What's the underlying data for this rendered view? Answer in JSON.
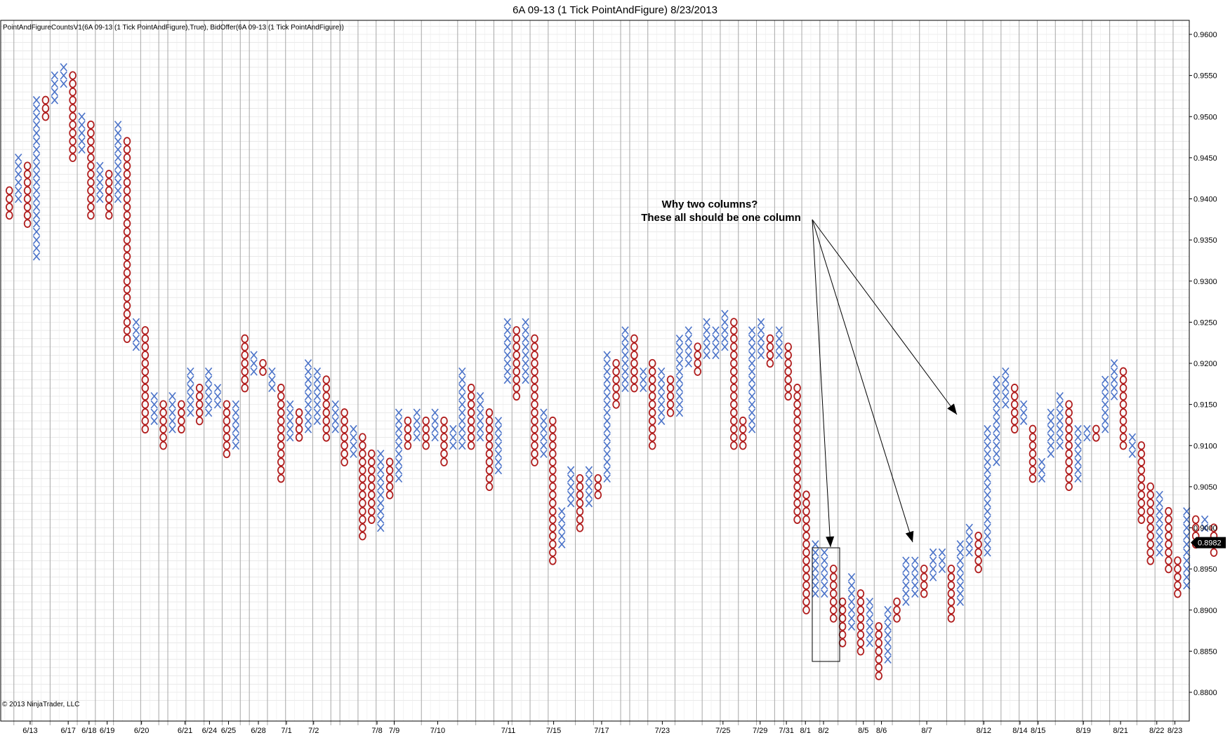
{
  "title": "6A 09-13 (1 Tick PointAndFigure)  8/23/2013",
  "indicator_label": "PointAndFigureCountsV1(6A 09-13 (1 Tick PointAndFigure),True), BidOffer(6A 09-13 (1 Tick PointAndFigure))",
  "copyright": "© 2013 NinjaTrader, LLC",
  "colors": {
    "x_color": "#4a72c8",
    "o_color": "#b01c1c",
    "grid": "#dcdcdc",
    "date_line": "#a8a8a8",
    "frame": "#000000"
  },
  "annotation": {
    "line1": "Why two columns?",
    "line2": "These all should be one column"
  },
  "last_price": {
    "label": "0.8982",
    "value": 0.8982
  },
  "chart_data": {
    "type": "point-and-figure",
    "box_size": 0.001,
    "ylim": [
      0.879,
      0.9615
    ],
    "y_ticks": [
      0.88,
      0.885,
      0.89,
      0.895,
      0.9,
      0.905,
      0.91,
      0.915,
      0.92,
      0.925,
      0.93,
      0.935,
      0.94,
      0.945,
      0.95,
      0.955,
      0.96
    ],
    "y_tick_labels": [
      "0.8800",
      "0.8850",
      "0.8900",
      "0.8950",
      "0.9000",
      "0.9050",
      "0.9100",
      "0.9150",
      "0.9200",
      "0.9250",
      "0.9300",
      "0.9350",
      "0.9400",
      "0.9450",
      "0.9500",
      "0.9550",
      "0.9600"
    ],
    "x_labels": [
      {
        "label": "6/13",
        "col": 2.3
      },
      {
        "label": "6/17",
        "col": 6.5
      },
      {
        "label": "6/18",
        "col": 8.8
      },
      {
        "label": "6/19",
        "col": 10.8
      },
      {
        "label": "6/20",
        "col": 14.6
      },
      {
        "label": "6/21",
        "col": 19.4
      },
      {
        "label": "6/24",
        "col": 22.1
      },
      {
        "label": "6/25",
        "col": 24.2
      },
      {
        "label": "6/28",
        "col": 27.5
      },
      {
        "label": "7/1",
        "col": 30.6
      },
      {
        "label": "7/2",
        "col": 33.6
      },
      {
        "label": "7/8",
        "col": 40.6
      },
      {
        "label": "7/9",
        "col": 42.5
      },
      {
        "label": "7/10",
        "col": 47.3
      },
      {
        "label": "7/11",
        "col": 55.1
      },
      {
        "label": "7/15",
        "col": 60.1
      },
      {
        "label": "7/17",
        "col": 65.4
      },
      {
        "label": "7/23",
        "col": 72.1
      },
      {
        "label": "7/25",
        "col": 78.8
      },
      {
        "label": "7/29",
        "col": 82.9
      },
      {
        "label": "7/31",
        "col": 85.8
      },
      {
        "label": "8/1",
        "col": 87.9
      },
      {
        "label": "8/2",
        "col": 89.9
      },
      {
        "label": "8/5",
        "col": 94.3
      },
      {
        "label": "8/6",
        "col": 96.3
      },
      {
        "label": "8/7",
        "col": 101.3
      },
      {
        "label": "8/12",
        "col": 107.6
      },
      {
        "label": "8/14",
        "col": 111.6
      },
      {
        "label": "8/15",
        "col": 113.6
      },
      {
        "label": "8/19",
        "col": 118.6
      },
      {
        "label": "8/21",
        "col": 122.7
      },
      {
        "label": "8/22",
        "col": 126.7
      },
      {
        "label": "8/23",
        "col": 128.7
      }
    ],
    "date_separators": [
      0.5,
      2.5,
      4.5,
      7.5,
      9.5,
      11.5,
      14.5,
      16.5,
      17.5,
      19.5,
      21.5,
      23.5,
      25.5,
      26.5,
      28.5,
      30.5,
      33.5,
      35.5,
      36.5,
      38.5,
      40.5,
      42.5,
      45.5,
      49.5,
      51.5,
      53.5,
      55.5,
      57.5,
      59.5,
      62.5,
      64.5,
      67.5,
      68.5,
      70.5,
      73.5,
      76.5,
      78.5,
      80.5,
      82.5,
      84.5,
      85.5,
      87.5,
      89.5,
      91.5,
      93.5,
      95.5,
      97.5,
      100.5,
      103.5,
      105.5,
      107.5,
      109.5,
      111.5,
      113.5,
      115.5,
      118.5,
      119.5,
      121.5,
      124.5,
      126.5,
      128.5
    ],
    "columns": [
      {
        "t": "O",
        "hi": 0.941,
        "lo": 0.938
      },
      {
        "t": "X",
        "hi": 0.945,
        "lo": 0.94
      },
      {
        "t": "O",
        "hi": 0.944,
        "lo": 0.937
      },
      {
        "t": "X",
        "hi": 0.952,
        "lo": 0.933
      },
      {
        "t": "O",
        "hi": 0.952,
        "lo": 0.95
      },
      {
        "t": "X",
        "hi": 0.955,
        "lo": 0.952
      },
      {
        "t": "X",
        "hi": 0.956,
        "lo": 0.954
      },
      {
        "t": "O",
        "hi": 0.955,
        "lo": 0.945
      },
      {
        "t": "X",
        "hi": 0.95,
        "lo": 0.946
      },
      {
        "t": "O",
        "hi": 0.949,
        "lo": 0.938
      },
      {
        "t": "X",
        "hi": 0.944,
        "lo": 0.94
      },
      {
        "t": "O",
        "hi": 0.943,
        "lo": 0.938
      },
      {
        "t": "X",
        "hi": 0.949,
        "lo": 0.94
      },
      {
        "t": "O",
        "hi": 0.947,
        "lo": 0.923
      },
      {
        "t": "X",
        "hi": 0.925,
        "lo": 0.922
      },
      {
        "t": "O",
        "hi": 0.924,
        "lo": 0.912
      },
      {
        "t": "X",
        "hi": 0.916,
        "lo": 0.913
      },
      {
        "t": "O",
        "hi": 0.915,
        "lo": 0.91
      },
      {
        "t": "X",
        "hi": 0.916,
        "lo": 0.912
      },
      {
        "t": "O",
        "hi": 0.915,
        "lo": 0.912
      },
      {
        "t": "X",
        "hi": 0.919,
        "lo": 0.914
      },
      {
        "t": "O",
        "hi": 0.917,
        "lo": 0.913
      },
      {
        "t": "X",
        "hi": 0.919,
        "lo": 0.914
      },
      {
        "t": "X",
        "hi": 0.917,
        "lo": 0.915
      },
      {
        "t": "O",
        "hi": 0.915,
        "lo": 0.909
      },
      {
        "t": "X",
        "hi": 0.915,
        "lo": 0.91
      },
      {
        "t": "O",
        "hi": 0.923,
        "lo": 0.917
      },
      {
        "t": "X",
        "hi": 0.921,
        "lo": 0.919
      },
      {
        "t": "O",
        "hi": 0.92,
        "lo": 0.919
      },
      {
        "t": "X",
        "hi": 0.919,
        "lo": 0.917
      },
      {
        "t": "O",
        "hi": 0.917,
        "lo": 0.906
      },
      {
        "t": "X",
        "hi": 0.915,
        "lo": 0.911
      },
      {
        "t": "O",
        "hi": 0.914,
        "lo": 0.911
      },
      {
        "t": "X",
        "hi": 0.92,
        "lo": 0.912
      },
      {
        "t": "X",
        "hi": 0.919,
        "lo": 0.913
      },
      {
        "t": "O",
        "hi": 0.918,
        "lo": 0.911
      },
      {
        "t": "X",
        "hi": 0.915,
        "lo": 0.912
      },
      {
        "t": "O",
        "hi": 0.914,
        "lo": 0.908
      },
      {
        "t": "X",
        "hi": 0.912,
        "lo": 0.909
      },
      {
        "t": "O",
        "hi": 0.911,
        "lo": 0.899
      },
      {
        "t": "O",
        "hi": 0.909,
        "lo": 0.901
      },
      {
        "t": "X",
        "hi": 0.909,
        "lo": 0.9
      },
      {
        "t": "O",
        "hi": 0.908,
        "lo": 0.904
      },
      {
        "t": "X",
        "hi": 0.914,
        "lo": 0.906
      },
      {
        "t": "O",
        "hi": 0.913,
        "lo": 0.91
      },
      {
        "t": "X",
        "hi": 0.914,
        "lo": 0.911
      },
      {
        "t": "O",
        "hi": 0.913,
        "lo": 0.91
      },
      {
        "t": "X",
        "hi": 0.914,
        "lo": 0.911
      },
      {
        "t": "O",
        "hi": 0.913,
        "lo": 0.908
      },
      {
        "t": "X",
        "hi": 0.912,
        "lo": 0.91
      },
      {
        "t": "X",
        "hi": 0.919,
        "lo": 0.91
      },
      {
        "t": "O",
        "hi": 0.917,
        "lo": 0.91
      },
      {
        "t": "X",
        "hi": 0.916,
        "lo": 0.911
      },
      {
        "t": "O",
        "hi": 0.914,
        "lo": 0.905
      },
      {
        "t": "X",
        "hi": 0.913,
        "lo": 0.907
      },
      {
        "t": "X",
        "hi": 0.925,
        "lo": 0.918
      },
      {
        "t": "O",
        "hi": 0.924,
        "lo": 0.916
      },
      {
        "t": "X",
        "hi": 0.925,
        "lo": 0.918
      },
      {
        "t": "O",
        "hi": 0.923,
        "lo": 0.908
      },
      {
        "t": "X",
        "hi": 0.914,
        "lo": 0.909
      },
      {
        "t": "O",
        "hi": 0.913,
        "lo": 0.896
      },
      {
        "t": "X",
        "hi": 0.902,
        "lo": 0.898
      },
      {
        "t": "X",
        "hi": 0.907,
        "lo": 0.903
      },
      {
        "t": "O",
        "hi": 0.906,
        "lo": 0.9
      },
      {
        "t": "X",
        "hi": 0.907,
        "lo": 0.903
      },
      {
        "t": "O",
        "hi": 0.906,
        "lo": 0.904
      },
      {
        "t": "X",
        "hi": 0.921,
        "lo": 0.906
      },
      {
        "t": "O",
        "hi": 0.92,
        "lo": 0.915
      },
      {
        "t": "X",
        "hi": 0.924,
        "lo": 0.917
      },
      {
        "t": "O",
        "hi": 0.923,
        "lo": 0.917
      },
      {
        "t": "X",
        "hi": 0.919,
        "lo": 0.917
      },
      {
        "t": "O",
        "hi": 0.92,
        "lo": 0.91
      },
      {
        "t": "X",
        "hi": 0.919,
        "lo": 0.913
      },
      {
        "t": "O",
        "hi": 0.918,
        "lo": 0.914
      },
      {
        "t": "X",
        "hi": 0.923,
        "lo": 0.914
      },
      {
        "t": "X",
        "hi": 0.924,
        "lo": 0.92
      },
      {
        "t": "O",
        "hi": 0.922,
        "lo": 0.919
      },
      {
        "t": "X",
        "hi": 0.925,
        "lo": 0.921
      },
      {
        "t": "X",
        "hi": 0.924,
        "lo": 0.921
      },
      {
        "t": "X",
        "hi": 0.926,
        "lo": 0.922
      },
      {
        "t": "O",
        "hi": 0.925,
        "lo": 0.91
      },
      {
        "t": "O",
        "hi": 0.913,
        "lo": 0.91
      },
      {
        "t": "X",
        "hi": 0.924,
        "lo": 0.912
      },
      {
        "t": "X",
        "hi": 0.925,
        "lo": 0.921
      },
      {
        "t": "O",
        "hi": 0.923,
        "lo": 0.92
      },
      {
        "t": "X",
        "hi": 0.924,
        "lo": 0.921
      },
      {
        "t": "O",
        "hi": 0.922,
        "lo": 0.916
      },
      {
        "t": "O",
        "hi": 0.917,
        "lo": 0.901
      },
      {
        "t": "O",
        "hi": 0.904,
        "lo": 0.89
      },
      {
        "t": "X",
        "hi": 0.898,
        "lo": 0.892
      },
      {
        "t": "X",
        "hi": 0.897,
        "lo": 0.892
      },
      {
        "t": "O",
        "hi": 0.895,
        "lo": 0.889
      },
      {
        "t": "O",
        "hi": 0.891,
        "lo": 0.886
      },
      {
        "t": "X",
        "hi": 0.894,
        "lo": 0.888
      },
      {
        "t": "O",
        "hi": 0.892,
        "lo": 0.885
      },
      {
        "t": "X",
        "hi": 0.891,
        "lo": 0.886
      },
      {
        "t": "O",
        "hi": 0.888,
        "lo": 0.882
      },
      {
        "t": "X",
        "hi": 0.89,
        "lo": 0.884
      },
      {
        "t": "O",
        "hi": 0.891,
        "lo": 0.889
      },
      {
        "t": "X",
        "hi": 0.896,
        "lo": 0.891
      },
      {
        "t": "X",
        "hi": 0.896,
        "lo": 0.892
      },
      {
        "t": "O",
        "hi": 0.895,
        "lo": 0.892
      },
      {
        "t": "X",
        "hi": 0.897,
        "lo": 0.894
      },
      {
        "t": "X",
        "hi": 0.897,
        "lo": 0.895
      },
      {
        "t": "O",
        "hi": 0.895,
        "lo": 0.889
      },
      {
        "t": "X",
        "hi": 0.898,
        "lo": 0.891
      },
      {
        "t": "X",
        "hi": 0.9,
        "lo": 0.897
      },
      {
        "t": "O",
        "hi": 0.899,
        "lo": 0.895
      },
      {
        "t": "X",
        "hi": 0.912,
        "lo": 0.897
      },
      {
        "t": "X",
        "hi": 0.918,
        "lo": 0.908
      },
      {
        "t": "X",
        "hi": 0.919,
        "lo": 0.915
      },
      {
        "t": "O",
        "hi": 0.917,
        "lo": 0.912
      },
      {
        "t": "X",
        "hi": 0.915,
        "lo": 0.913
      },
      {
        "t": "O",
        "hi": 0.912,
        "lo": 0.906
      },
      {
        "t": "X",
        "hi": 0.908,
        "lo": 0.906
      },
      {
        "t": "X",
        "hi": 0.914,
        "lo": 0.909
      },
      {
        "t": "X",
        "hi": 0.916,
        "lo": 0.91
      },
      {
        "t": "O",
        "hi": 0.915,
        "lo": 0.905
      },
      {
        "t": "X",
        "hi": 0.912,
        "lo": 0.906
      },
      {
        "t": "X",
        "hi": 0.912,
        "lo": 0.911
      },
      {
        "t": "O",
        "hi": 0.912,
        "lo": 0.911
      },
      {
        "t": "X",
        "hi": 0.918,
        "lo": 0.912
      },
      {
        "t": "X",
        "hi": 0.92,
        "lo": 0.916
      },
      {
        "t": "O",
        "hi": 0.919,
        "lo": 0.91
      },
      {
        "t": "X",
        "hi": 0.911,
        "lo": 0.909
      },
      {
        "t": "O",
        "hi": 0.91,
        "lo": 0.901
      },
      {
        "t": "O",
        "hi": 0.905,
        "lo": 0.896
      },
      {
        "t": "X",
        "hi": 0.904,
        "lo": 0.897
      },
      {
        "t": "O",
        "hi": 0.902,
        "lo": 0.895
      },
      {
        "t": "O",
        "hi": 0.896,
        "lo": 0.892
      },
      {
        "t": "X",
        "hi": 0.902,
        "lo": 0.893
      },
      {
        "t": "O",
        "hi": 0.901,
        "lo": 0.898
      },
      {
        "t": "X",
        "hi": 0.901,
        "lo": 0.9
      },
      {
        "t": "O",
        "hi": 0.9,
        "lo": 0.897
      }
    ]
  }
}
